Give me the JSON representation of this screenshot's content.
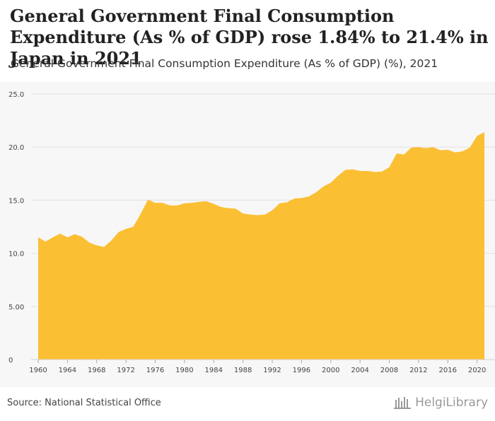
{
  "header": {
    "title": "General Government Final Consumption Expenditure (As % of GDP) rose 1.84% to 21.4% in Japan in 2021",
    "subtitle": "General Government Final Consumption Expenditure (As % of GDP) (%), 2021"
  },
  "footer": {
    "source": "Source: National Statistical Office",
    "logo_text": "HelgiLibrary"
  },
  "colors": {
    "area_fill": "#fbbf33",
    "plot_background": "#f7f7f7",
    "gridline": "#e2e2e2"
  },
  "chart_data": {
    "type": "area",
    "title": "General Government Final Consumption Expenditure (As % of GDP) rose 1.84% to 21.4% in Japan in 2021",
    "subtitle": "General Government Final Consumption Expenditure (As % of GDP) (%), 2021",
    "xlabel": "",
    "ylabel": "",
    "x": [
      1960,
      1961,
      1962,
      1963,
      1964,
      1965,
      1966,
      1967,
      1968,
      1969,
      1970,
      1971,
      1972,
      1973,
      1974,
      1975,
      1976,
      1977,
      1978,
      1979,
      1980,
      1981,
      1982,
      1983,
      1984,
      1985,
      1986,
      1987,
      1988,
      1989,
      1990,
      1991,
      1992,
      1993,
      1994,
      1995,
      1996,
      1997,
      1998,
      1999,
      2000,
      2001,
      2002,
      2003,
      2004,
      2005,
      2006,
      2007,
      2008,
      2009,
      2010,
      2011,
      2012,
      2013,
      2014,
      2015,
      2016,
      2017,
      2018,
      2019,
      2020,
      2021
    ],
    "series": [
      {
        "values": [
          11.5,
          11.1,
          11.5,
          11.85,
          11.5,
          11.8,
          11.55,
          11.0,
          10.75,
          10.6,
          11.2,
          12.0,
          12.3,
          12.5,
          13.7,
          15.05,
          14.75,
          14.75,
          14.5,
          14.5,
          14.7,
          14.75,
          14.85,
          14.9,
          14.65,
          14.35,
          14.25,
          14.2,
          13.75,
          13.65,
          13.6,
          13.65,
          14.05,
          14.7,
          14.8,
          15.15,
          15.2,
          15.35,
          15.75,
          16.3,
          16.65,
          17.3,
          17.85,
          17.9,
          17.75,
          17.75,
          17.65,
          17.7,
          18.1,
          19.4,
          19.3,
          19.95,
          20.0,
          19.9,
          20.0,
          19.7,
          19.75,
          19.5,
          19.6,
          19.95,
          21.05,
          21.4
        ]
      }
    ],
    "x_ticks": [
      "1960",
      "1964",
      "1968",
      "1972",
      "1976",
      "1980",
      "1984",
      "1988",
      "1992",
      "1996",
      "2000",
      "2004",
      "2008",
      "2012",
      "2016",
      "2020"
    ],
    "y_ticks": [
      "0",
      "5.00",
      "10.0",
      "15.0",
      "20.0",
      "25.0"
    ],
    "xlim": [
      1960,
      2021
    ],
    "ylim": [
      0,
      25
    ],
    "grid": true,
    "legend": "none"
  }
}
